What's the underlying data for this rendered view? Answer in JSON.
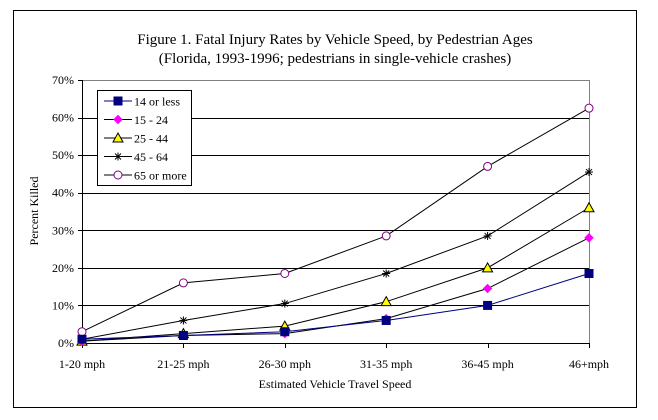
{
  "chart_data": {
    "type": "line",
    "title": "Figure 1. Fatal Injury Rates by Vehicle Speed, by Pedestrian Ages",
    "subtitle": "(Florida, 1993-1996; pedestrians in single-vehicle crashes)",
    "xlabel": "Estimated Vehicle Travel Speed",
    "ylabel": "Percent Killed",
    "categories": [
      "1-20 mph",
      "21-25 mph",
      "26-30 mph",
      "31-35 mph",
      "36-45 mph",
      "46+mph"
    ],
    "ylim": [
      0,
      70
    ],
    "yticks": [
      0,
      10,
      20,
      30,
      40,
      50,
      60,
      70
    ],
    "ytick_labels": [
      "0%",
      "10%",
      "20%",
      "30%",
      "40%",
      "50%",
      "60%",
      "70%"
    ],
    "grid": true,
    "legend_position": "top-left",
    "series": [
      {
        "name": "14 or less",
        "values": [
          1,
          2,
          3,
          6,
          10,
          18.5
        ],
        "color": "#000080",
        "marker": "square",
        "line_color": "#000080"
      },
      {
        "name": "15 - 24",
        "values": [
          0.5,
          2,
          2.5,
          6.5,
          14.5,
          28
        ],
        "color": "#ff00ff",
        "marker": "diamond",
        "line_color": "#000000"
      },
      {
        "name": "25 - 44",
        "values": [
          0.5,
          2.5,
          4.5,
          11,
          20,
          36
        ],
        "color": "#ffff00",
        "marker": "triangle",
        "line_color": "#000000"
      },
      {
        "name": "45 - 64",
        "values": [
          1,
          6,
          10.5,
          18.5,
          28.5,
          45.5
        ],
        "color": "#000000",
        "marker": "star",
        "line_color": "#000000"
      },
      {
        "name": "65 or more",
        "values": [
          3,
          16,
          18.5,
          28.5,
          47,
          62.5
        ],
        "color": "#800080",
        "marker": "circle",
        "line_color": "#000000"
      }
    ]
  }
}
